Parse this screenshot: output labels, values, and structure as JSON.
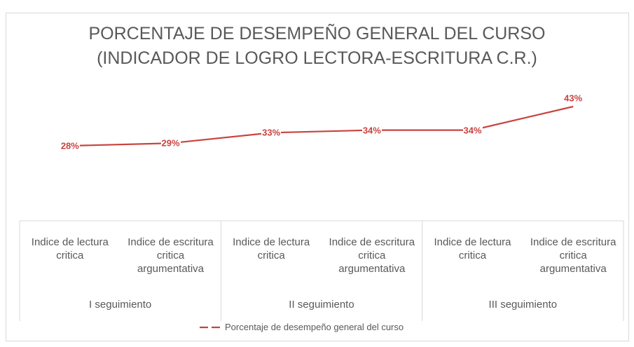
{
  "chart_data": {
    "type": "line",
    "title": [
      "PORCENTAJE DE DESEMPEÑO GENERAL DEL CURSO",
      "(INDICADOR DE LOGRO LECTORA-ESCRITURA C.R.)"
    ],
    "categories": [
      "Indice de lectura critica",
      "Indice de escritura critica argumentativa",
      "Indice de lectura critica",
      "Indice de escritura critica argumentativa",
      "Indice de lectura critica",
      "Indice de escritura critica argumentativa"
    ],
    "groups": [
      "I seguimiento",
      "II seguimiento",
      "III seguimiento"
    ],
    "series": [
      {
        "name": "Porcentaje de desempeño general del curso",
        "color": "#c9433f",
        "values": [
          28,
          29,
          33,
          34,
          34,
          43
        ],
        "value_labels": [
          "28%",
          "29%",
          "33%",
          "34%",
          "34%",
          "43%"
        ]
      }
    ],
    "legend": "bottom"
  }
}
